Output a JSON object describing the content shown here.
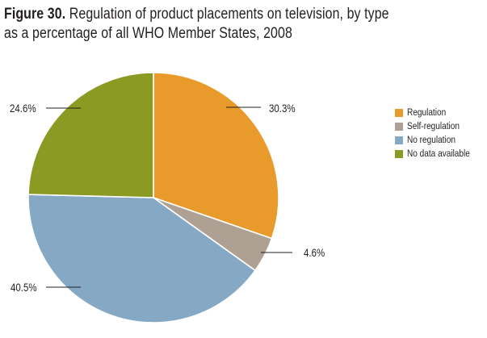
{
  "chart_data": {
    "type": "pie",
    "title_prefix": "Figure 30.",
    "title": "Regulation of product placements on television, by type",
    "subtitle": "as a percentage of all WHO Member States, 2008",
    "slices": [
      {
        "name": "Regulation",
        "value": 30.3,
        "label": "30.3%",
        "color": "#e89a2a"
      },
      {
        "name": "Self-regulation",
        "value": 4.6,
        "label": "4.6%",
        "color": "#aea193"
      },
      {
        "name": "No regulation",
        "value": 40.5,
        "label": "40.5%",
        "color": "#85a9c4"
      },
      {
        "name": "No data available",
        "value": 24.6,
        "label": "24.6%",
        "color": "#8a9a22"
      }
    ],
    "legend_position": "right"
  }
}
